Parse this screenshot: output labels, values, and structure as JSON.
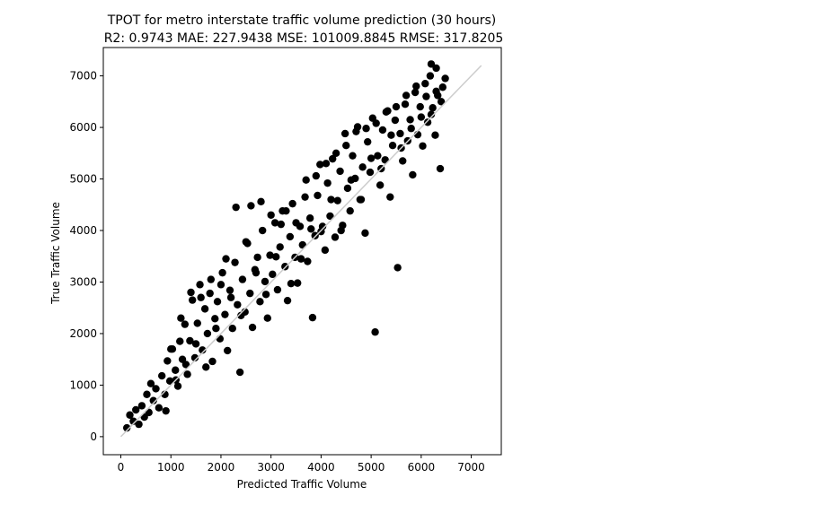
{
  "chart_data": {
    "type": "scatter",
    "title": "TPOT for metro interstate traffic volume prediction (30 hours)",
    "subtitle": "R2: 0.9743 MAE: 227.9438 MSE: 101009.8845 RMSE: 317.8205",
    "xlabel": "Predicted Traffic Volume",
    "ylabel": "True Traffic Volume",
    "xlim": [
      -350,
      7600
    ],
    "ylim": [
      -350,
      7550
    ],
    "x_ticks": [
      0,
      1000,
      2000,
      3000,
      4000,
      5000,
      6000,
      7000
    ],
    "y_ticks": [
      0,
      1000,
      2000,
      3000,
      4000,
      5000,
      6000,
      7000
    ],
    "x_tick_labels": [
      "0",
      "1000",
      "2000",
      "3000",
      "4000",
      "5000",
      "6000",
      "7000"
    ],
    "y_tick_labels": [
      "0",
      "1000",
      "2000",
      "3000",
      "4000",
      "5000",
      "6000",
      "7000"
    ],
    "reference_line": {
      "x": [
        0,
        7200
      ],
      "y": [
        0,
        7200
      ],
      "color": "#cccccc"
    },
    "point_color": "#000000",
    "grid": false,
    "series": [
      {
        "points": [
          [
            120,
            170
          ],
          [
            180,
            420
          ],
          [
            250,
            300
          ],
          [
            300,
            520
          ],
          [
            360,
            240
          ],
          [
            420,
            600
          ],
          [
            470,
            380
          ],
          [
            520,
            820
          ],
          [
            560,
            470
          ],
          [
            600,
            1030
          ],
          [
            650,
            700
          ],
          [
            700,
            930
          ],
          [
            760,
            560
          ],
          [
            820,
            1180
          ],
          [
            880,
            820
          ],
          [
            930,
            1470
          ],
          [
            980,
            1080
          ],
          [
            1030,
            1700
          ],
          [
            1090,
            1290
          ],
          [
            1140,
            980
          ],
          [
            1180,
            1850
          ],
          [
            1230,
            1500
          ],
          [
            1280,
            2180
          ],
          [
            1330,
            1210
          ],
          [
            1380,
            1860
          ],
          [
            1430,
            2650
          ],
          [
            1480,
            1530
          ],
          [
            1530,
            2200
          ],
          [
            1580,
            2950
          ],
          [
            1630,
            1680
          ],
          [
            1680,
            2480
          ],
          [
            1730,
            2000
          ],
          [
            1780,
            2780
          ],
          [
            1830,
            1460
          ],
          [
            1880,
            2290
          ],
          [
            1930,
            2620
          ],
          [
            1980,
            1900
          ],
          [
            2030,
            3180
          ],
          [
            2080,
            2370
          ],
          [
            2130,
            1670
          ],
          [
            2180,
            2840
          ],
          [
            2230,
            2100
          ],
          [
            2280,
            3380
          ],
          [
            2330,
            2560
          ],
          [
            2380,
            1250
          ],
          [
            2430,
            3050
          ],
          [
            2480,
            2420
          ],
          [
            2530,
            3750
          ],
          [
            2580,
            2780
          ],
          [
            2630,
            2120
          ],
          [
            2680,
            3240
          ],
          [
            2730,
            3480
          ],
          [
            2780,
            2620
          ],
          [
            2830,
            4000
          ],
          [
            2880,
            3010
          ],
          [
            2930,
            2300
          ],
          [
            2980,
            3520
          ],
          [
            3030,
            3150
          ],
          [
            3080,
            4150
          ],
          [
            3130,
            2850
          ],
          [
            3180,
            3680
          ],
          [
            3230,
            4380
          ],
          [
            3280,
            3300
          ],
          [
            3330,
            2640
          ],
          [
            3380,
            3880
          ],
          [
            3430,
            4520
          ],
          [
            3480,
            3480
          ],
          [
            3530,
            2980
          ],
          [
            3580,
            4080
          ],
          [
            3630,
            3720
          ],
          [
            3680,
            4650
          ],
          [
            3730,
            3400
          ],
          [
            3780,
            4240
          ],
          [
            3830,
            2310
          ],
          [
            3880,
            3900
          ],
          [
            3930,
            4680
          ],
          [
            3980,
            5280
          ],
          [
            4030,
            4080
          ],
          [
            4080,
            3620
          ],
          [
            4130,
            4920
          ],
          [
            4180,
            4280
          ],
          [
            4230,
            5390
          ],
          [
            4280,
            3870
          ],
          [
            4330,
            4580
          ],
          [
            4380,
            5150
          ],
          [
            4430,
            4100
          ],
          [
            4480,
            5880
          ],
          [
            4530,
            4820
          ],
          [
            4580,
            4380
          ],
          [
            4630,
            5450
          ],
          [
            4680,
            5010
          ],
          [
            4730,
            6010
          ],
          [
            4780,
            4600
          ],
          [
            4830,
            5230
          ],
          [
            4880,
            3950
          ],
          [
            4930,
            5720
          ],
          [
            4980,
            5130
          ],
          [
            5030,
            6180
          ],
          [
            5080,
            2030
          ],
          [
            5130,
            5450
          ],
          [
            5180,
            4880
          ],
          [
            5230,
            5950
          ],
          [
            5280,
            5370
          ],
          [
            5330,
            6320
          ],
          [
            5380,
            4650
          ],
          [
            5430,
            5650
          ],
          [
            5480,
            6140
          ],
          [
            5530,
            3280
          ],
          [
            5580,
            5880
          ],
          [
            5630,
            5350
          ],
          [
            5680,
            6450
          ],
          [
            5730,
            5740
          ],
          [
            5780,
            6150
          ],
          [
            5830,
            5080
          ],
          [
            5880,
            6680
          ],
          [
            5930,
            5860
          ],
          [
            5980,
            6400
          ],
          [
            6030,
            5640
          ],
          [
            6080,
            6850
          ],
          [
            6130,
            6100
          ],
          [
            6180,
            7000
          ],
          [
            6230,
            6380
          ],
          [
            6280,
            5850
          ],
          [
            6330,
            6620
          ],
          [
            6380,
            5200
          ],
          [
            6430,
            6780
          ],
          [
            6480,
            6950
          ],
          [
            6200,
            7230
          ],
          [
            6300,
            7150
          ],
          [
            900,
            500
          ],
          [
            1000,
            1700
          ],
          [
            1100,
            1100
          ],
          [
            1200,
            2300
          ],
          [
            1300,
            1400
          ],
          [
            1400,
            2800
          ],
          [
            1500,
            1800
          ],
          [
            1600,
            2700
          ],
          [
            1700,
            1350
          ],
          [
            1800,
            3050
          ],
          [
            1900,
            2100
          ],
          [
            2000,
            2950
          ],
          [
            2100,
            3450
          ],
          [
            2200,
            2700
          ],
          [
            2300,
            4450
          ],
          [
            2400,
            2350
          ],
          [
            2500,
            3780
          ],
          [
            2600,
            4480
          ],
          [
            2700,
            3180
          ],
          [
            2800,
            4560
          ],
          [
            2900,
            2760
          ],
          [
            3000,
            4300
          ],
          [
            3100,
            3490
          ],
          [
            3200,
            4120
          ],
          [
            3300,
            4380
          ],
          [
            3400,
            2970
          ],
          [
            3500,
            4150
          ],
          [
            3600,
            3450
          ],
          [
            3700,
            4980
          ],
          [
            3800,
            4030
          ],
          [
            3900,
            5060
          ],
          [
            4000,
            3980
          ],
          [
            4100,
            5300
          ],
          [
            4200,
            4600
          ],
          [
            4300,
            5500
          ],
          [
            4400,
            4000
          ],
          [
            4500,
            5650
          ],
          [
            4600,
            4980
          ],
          [
            4700,
            5920
          ],
          [
            4800,
            4600
          ],
          [
            4900,
            5980
          ],
          [
            5000,
            5400
          ],
          [
            5100,
            6080
          ],
          [
            5200,
            5200
          ],
          [
            5300,
            6300
          ],
          [
            5400,
            5850
          ],
          [
            5500,
            6400
          ],
          [
            5600,
            5600
          ],
          [
            5700,
            6620
          ],
          [
            5800,
            5980
          ],
          [
            5900,
            6800
          ],
          [
            6000,
            6200
          ],
          [
            6100,
            6600
          ],
          [
            6200,
            6250
          ],
          [
            6300,
            6700
          ],
          [
            6400,
            6500
          ]
        ]
      }
    ]
  }
}
